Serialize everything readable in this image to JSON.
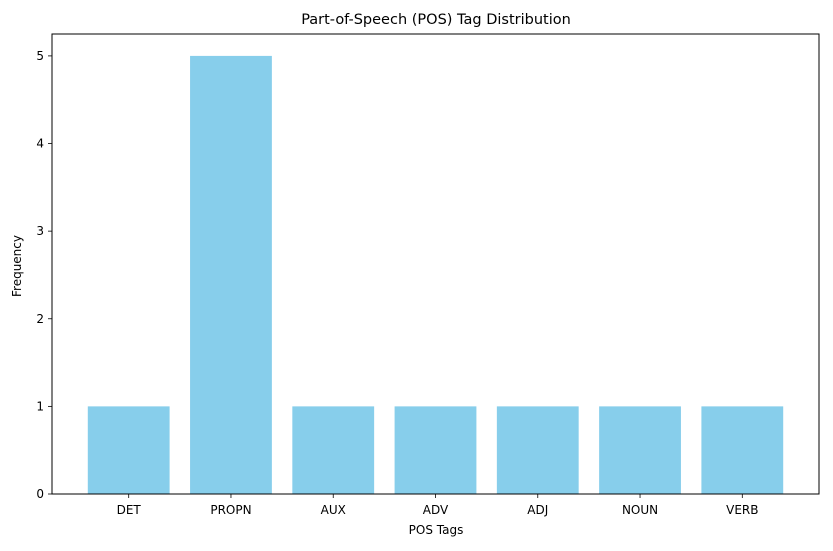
{
  "chart_data": {
    "type": "bar",
    "title": "Part-of-Speech (POS) Tag Distribution",
    "xlabel": "POS Tags",
    "ylabel": "Frequency",
    "categories": [
      "DET",
      "PROPN",
      "AUX",
      "ADV",
      "ADJ",
      "NOUN",
      "VERB"
    ],
    "values": [
      1,
      5,
      1,
      1,
      1,
      1,
      1
    ],
    "ylim": [
      0,
      5.25
    ],
    "yticks": [
      0,
      1,
      2,
      3,
      4,
      5
    ],
    "bar_color": "#87CEEB",
    "grid": false,
    "legend": "none"
  }
}
